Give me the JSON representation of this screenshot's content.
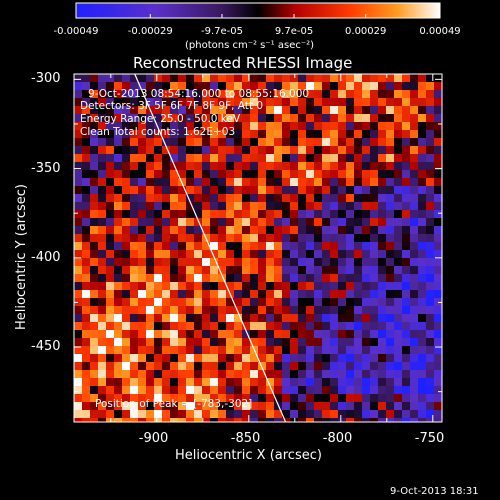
{
  "colorbar": {
    "ticks": [
      "-0.00049",
      "-0.00029",
      "-9.7e-05",
      "9.7e-05",
      "0.00029",
      "0.00049"
    ],
    "tick_values": [
      -0.00049,
      -0.00029,
      -9.7e-05,
      9.7e-05,
      0.00029,
      0.00049
    ],
    "range": [
      -0.00049,
      0.00049
    ],
    "unit_label": "(photons cm⁻² s⁻¹ asec⁻²)"
  },
  "chart_data": {
    "type": "heatmap",
    "title": "Reconstructed RHESSI Image",
    "xlabel": "Heliocentric X (arcsec)",
    "ylabel": "Heliocentric Y (arcsec)",
    "xlim": [
      -945,
      -745
    ],
    "ylim": [
      -492,
      -297
    ],
    "xticks": [
      -900,
      -850,
      -800,
      -750
    ],
    "xtick_labels": [
      "-900",
      "-850",
      "-800",
      "-750"
    ],
    "yticks": [
      -300,
      -350,
      -400,
      -450
    ],
    "ytick_labels": [
      "-300",
      "-350",
      "-400",
      "-450"
    ],
    "colormap": "rhessi (blue-purple-black-red-orange-yellow-white)",
    "grid": false,
    "limb_line": {
      "x": [
        -912,
        -830
      ],
      "y": [
        -297,
        -492
      ]
    },
    "annotations": [
      "9-Oct-2013 08:54:16.000 to 08:55:16.000",
      "Detectors: 3F 5F 6F 7F 8F 9F, Att 0",
      "Energy Range: 25.0 - 50.0 keV",
      "Clean    Total counts: 1.62E+03"
    ],
    "peak_label": "Position of Peak = [-783,-302]"
  },
  "footer": {
    "timestamp": "9-Oct-2013 18:31"
  },
  "colors": {
    "background": "#000000",
    "text": "#ffffff",
    "limb": "#ffffff"
  }
}
